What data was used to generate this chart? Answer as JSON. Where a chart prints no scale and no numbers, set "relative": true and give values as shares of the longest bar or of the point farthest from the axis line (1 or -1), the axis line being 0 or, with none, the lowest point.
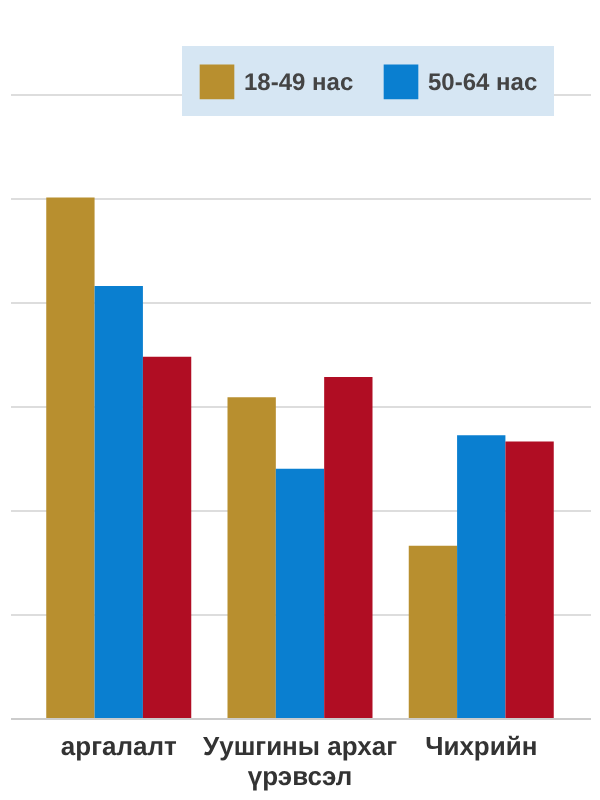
{
  "chart_data": {
    "type": "bar",
    "relative": true,
    "categories": [
      "аргалалт",
      "Уушгины архаг үрэвсэл",
      "Чихрийн"
    ],
    "series": [
      {
        "name": "18-49 нас",
        "color": "#b88f2f",
        "values": [
          1,
          0.616,
          0.331
        ]
      },
      {
        "name": "50-64 нас",
        "color": "#0a7fd0",
        "values": [
          0.83,
          0.479,
          0.543
        ]
      },
      {
        "color": "#b00d23",
        "values": [
          0.694,
          0.655,
          0.531
        ]
      }
    ],
    "grid": true,
    "legend": "top right"
  }
}
